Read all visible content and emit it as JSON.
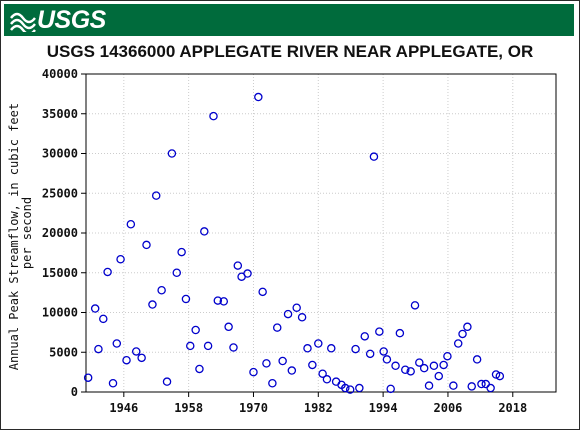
{
  "header": {
    "logo_text": "USGS",
    "title": "USGS 14366000 APPLEGATE RIVER NEAR APPLEGATE, OR",
    "brand_color": "#006b3c"
  },
  "chart_data": {
    "type": "scatter",
    "title": "USGS 14366000 APPLEGATE RIVER NEAR APPLEGATE, OR",
    "xlabel": "",
    "ylabel": "Annual Peak Streamflow, in cubic feet per second",
    "ylabel_lines": [
      "Annual Peak Streamflow, in cubic feet",
      "per second"
    ],
    "xlim": [
      1939,
      2026
    ],
    "ylim": [
      0,
      40000
    ],
    "xticks": [
      1946,
      1958,
      1970,
      1982,
      1994,
      2006,
      2018
    ],
    "yticks": [
      0,
      5000,
      10000,
      15000,
      20000,
      25000,
      30000,
      35000,
      40000
    ],
    "ytick_labels": [
      "0",
      "5000",
      "10000",
      "15000",
      "20000",
      "25000",
      "30000",
      "35000",
      "40000"
    ],
    "grid": true,
    "marker": "open-circle",
    "marker_color": "#0000cc",
    "points": [
      [
        1939.4,
        1800
      ],
      [
        1940.7,
        10500
      ],
      [
        1941.3,
        5400
      ],
      [
        1942.2,
        9200
      ],
      [
        1943.0,
        15100
      ],
      [
        1944.0,
        1100
      ],
      [
        1944.7,
        6100
      ],
      [
        1945.4,
        16700
      ],
      [
        1946.5,
        4000
      ],
      [
        1947.3,
        21100
      ],
      [
        1948.3,
        5100
      ],
      [
        1949.3,
        4300
      ],
      [
        1950.2,
        18500
      ],
      [
        1951.3,
        11000
      ],
      [
        1952.0,
        24700
      ],
      [
        1953.0,
        12800
      ],
      [
        1954.0,
        1300
      ],
      [
        1954.9,
        30000
      ],
      [
        1955.8,
        15000
      ],
      [
        1956.7,
        17600
      ],
      [
        1957.5,
        11700
      ],
      [
        1958.3,
        5800
      ],
      [
        1959.3,
        7800
      ],
      [
        1960.0,
        2900
      ],
      [
        1960.9,
        20200
      ],
      [
        1961.6,
        5800
      ],
      [
        1962.6,
        34700
      ],
      [
        1963.4,
        11500
      ],
      [
        1964.5,
        11400
      ],
      [
        1965.4,
        8200
      ],
      [
        1966.3,
        5600
      ],
      [
        1967.1,
        15900
      ],
      [
        1967.8,
        14500
      ],
      [
        1968.9,
        14900
      ],
      [
        1970.0,
        2500
      ],
      [
        1970.9,
        37100
      ],
      [
        1971.7,
        12600
      ],
      [
        1972.4,
        3600
      ],
      [
        1973.5,
        1100
      ],
      [
        1974.4,
        8100
      ],
      [
        1975.4,
        3900
      ],
      [
        1976.4,
        9800
      ],
      [
        1977.1,
        2700
      ],
      [
        1978.0,
        10600
      ],
      [
        1979.0,
        9400
      ],
      [
        1980.0,
        5500
      ],
      [
        1980.9,
        3400
      ],
      [
        1982.0,
        6100
      ],
      [
        1982.8,
        2300
      ],
      [
        1983.6,
        1600
      ],
      [
        1984.4,
        5500
      ],
      [
        1985.3,
        1300
      ],
      [
        1986.3,
        900
      ],
      [
        1987.0,
        500
      ],
      [
        1987.9,
        300
      ],
      [
        1988.9,
        5400
      ],
      [
        1989.6,
        500
      ],
      [
        1990.6,
        7000
      ],
      [
        1991.6,
        4800
      ],
      [
        1992.3,
        29600
      ],
      [
        1993.3,
        7600
      ],
      [
        1994.1,
        5100
      ],
      [
        1994.7,
        4100
      ],
      [
        1995.4,
        400
      ],
      [
        1996.3,
        3300
      ],
      [
        1997.1,
        7400
      ],
      [
        1998.1,
        2800
      ],
      [
        1999.1,
        2600
      ],
      [
        1999.9,
        10900
      ],
      [
        2000.7,
        3700
      ],
      [
        2001.6,
        3000
      ],
      [
        2002.5,
        800
      ],
      [
        2003.4,
        3300
      ],
      [
        2004.3,
        2000
      ],
      [
        2005.2,
        3400
      ],
      [
        2005.9,
        4500
      ],
      [
        2007.0,
        800
      ],
      [
        2007.9,
        6100
      ],
      [
        2008.7,
        7300
      ],
      [
        2009.6,
        8200
      ],
      [
        2010.4,
        700
      ],
      [
        2011.4,
        4100
      ],
      [
        2012.2,
        1000
      ],
      [
        2013.0,
        1000
      ],
      [
        2013.9,
        500
      ],
      [
        2014.9,
        2200
      ],
      [
        2015.6,
        2000
      ]
    ]
  }
}
